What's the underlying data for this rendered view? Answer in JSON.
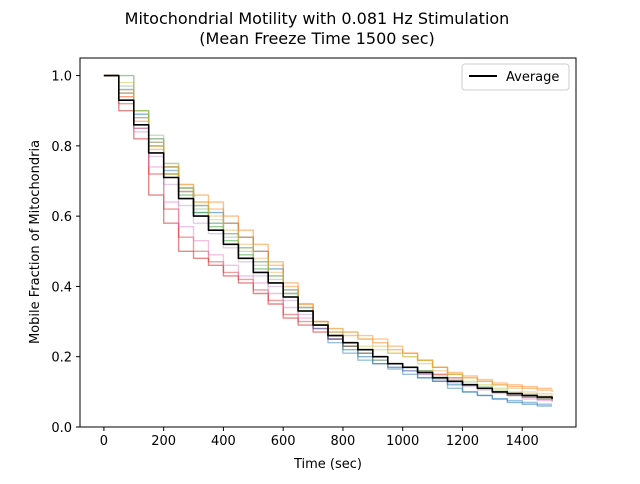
{
  "chart_data": {
    "type": "line",
    "title": "Mitochondrial Motility with 0.081 Hz Stimulation",
    "subtitle": "(Mean Freeze Time 1500 sec)",
    "xlabel": "Time (sec)",
    "ylabel": "Mobile Fraction of Mitochondria",
    "xlim": [
      -80,
      1580
    ],
    "ylim": [
      0.0,
      1.05
    ],
    "xticks": [
      0,
      200,
      400,
      600,
      800,
      1000,
      1200,
      1400
    ],
    "yticks": [
      0.0,
      0.2,
      0.4,
      0.6,
      0.8,
      1.0
    ],
    "xtick_labels": [
      "0",
      "200",
      "400",
      "600",
      "800",
      "1000",
      "1200",
      "1400"
    ],
    "ytick_labels": [
      "0.0",
      "0.2",
      "0.4",
      "0.6",
      "0.8",
      "1.0"
    ],
    "grid": false,
    "legend": {
      "position": "top-right",
      "entries": [
        "Average"
      ]
    },
    "step": true,
    "series": [
      {
        "name": "Average",
        "color": "#000000",
        "opacity": 1.0,
        "width": 1.6,
        "x": [
          0,
          50,
          100,
          150,
          200,
          250,
          300,
          350,
          400,
          450,
          500,
          550,
          600,
          650,
          700,
          750,
          800,
          850,
          900,
          950,
          1000,
          1050,
          1100,
          1150,
          1200,
          1250,
          1300,
          1350,
          1400,
          1450,
          1500
        ],
        "y": [
          1.0,
          0.93,
          0.86,
          0.78,
          0.71,
          0.65,
          0.6,
          0.56,
          0.52,
          0.48,
          0.44,
          0.41,
          0.37,
          0.33,
          0.29,
          0.26,
          0.24,
          0.22,
          0.2,
          0.18,
          0.17,
          0.155,
          0.14,
          0.13,
          0.12,
          0.11,
          0.1,
          0.095,
          0.09,
          0.085,
          0.08
        ]
      },
      {
        "color": "#d62728",
        "opacity": 0.55,
        "width": 1.4,
        "x": [
          0,
          50,
          100,
          150,
          200,
          250,
          300,
          350,
          400,
          450,
          500,
          550,
          600,
          650,
          700,
          750,
          800,
          850,
          900,
          950,
          1000,
          1050,
          1100,
          1150,
          1200,
          1250,
          1300,
          1350,
          1400,
          1450,
          1500
        ],
        "y": [
          1.0,
          0.9,
          0.82,
          0.66,
          0.58,
          0.5,
          0.48,
          0.46,
          0.43,
          0.41,
          0.38,
          0.35,
          0.31,
          0.29,
          0.27,
          0.25,
          0.23,
          0.22,
          0.2,
          0.18,
          0.17,
          0.16,
          0.15,
          0.14,
          0.12,
          0.11,
          0.1,
          0.095,
          0.09,
          0.085,
          0.08
        ]
      },
      {
        "color": "#d62728",
        "opacity": 0.45,
        "width": 1.4,
        "x": [
          0,
          50,
          100,
          150,
          200,
          250,
          300,
          350,
          400,
          450,
          500,
          550,
          600,
          650,
          700,
          750,
          800,
          850,
          900,
          950,
          1000,
          1050,
          1100,
          1150,
          1200,
          1250,
          1300,
          1350,
          1400,
          1450,
          1500
        ],
        "y": [
          1.0,
          0.92,
          0.85,
          0.72,
          0.62,
          0.54,
          0.5,
          0.47,
          0.44,
          0.42,
          0.39,
          0.36,
          0.32,
          0.3,
          0.28,
          0.25,
          0.23,
          0.21,
          0.2,
          0.18,
          0.17,
          0.155,
          0.14,
          0.13,
          0.12,
          0.11,
          0.1,
          0.09,
          0.085,
          0.08,
          0.075
        ]
      },
      {
        "color": "#e377c2",
        "opacity": 0.45,
        "width": 1.4,
        "x": [
          0,
          50,
          100,
          150,
          200,
          250,
          300,
          350,
          400,
          450,
          500,
          550,
          600,
          650,
          700,
          750,
          800,
          850,
          900,
          950,
          1000,
          1050,
          1100,
          1150,
          1200,
          1250,
          1300,
          1350,
          1400,
          1450,
          1500
        ],
        "y": [
          1.0,
          0.94,
          0.84,
          0.74,
          0.64,
          0.57,
          0.53,
          0.49,
          0.46,
          0.43,
          0.41,
          0.38,
          0.34,
          0.31,
          0.29,
          0.26,
          0.24,
          0.22,
          0.2,
          0.18,
          0.17,
          0.15,
          0.14,
          0.13,
          0.12,
          0.11,
          0.1,
          0.09,
          0.08,
          0.075,
          0.07
        ]
      },
      {
        "color": "#1f77b4",
        "opacity": 0.55,
        "width": 1.4,
        "x": [
          0,
          50,
          100,
          150,
          200,
          250,
          300,
          350,
          400,
          450,
          500,
          550,
          600,
          650,
          700,
          750,
          800,
          850,
          900,
          950,
          1000,
          1050,
          1100,
          1150,
          1200,
          1250,
          1300,
          1350,
          1400,
          1450,
          1500
        ],
        "y": [
          1.0,
          0.96,
          0.89,
          0.82,
          0.74,
          0.68,
          0.63,
          0.61,
          0.58,
          0.54,
          0.5,
          0.45,
          0.39,
          0.34,
          0.29,
          0.25,
          0.22,
          0.2,
          0.18,
          0.17,
          0.16,
          0.14,
          0.13,
          0.12,
          0.1,
          0.09,
          0.08,
          0.07,
          0.065,
          0.06,
          0.06
        ]
      },
      {
        "color": "#1f77b4",
        "opacity": 0.45,
        "width": 1.4,
        "x": [
          0,
          50,
          100,
          150,
          200,
          250,
          300,
          350,
          400,
          450,
          500,
          550,
          600,
          650,
          700,
          750,
          800,
          850,
          900,
          950,
          1000,
          1050,
          1100,
          1150,
          1200,
          1250,
          1300,
          1350,
          1400,
          1450,
          1500
        ],
        "y": [
          1.0,
          0.95,
          0.88,
          0.81,
          0.73,
          0.67,
          0.61,
          0.58,
          0.55,
          0.51,
          0.47,
          0.43,
          0.38,
          0.33,
          0.28,
          0.24,
          0.21,
          0.19,
          0.18,
          0.165,
          0.15,
          0.14,
          0.13,
          0.11,
          0.1,
          0.09,
          0.08,
          0.075,
          0.07,
          0.065,
          0.065
        ]
      },
      {
        "color": "#2ca02c",
        "opacity": 0.5,
        "width": 1.4,
        "x": [
          0,
          50,
          100,
          150,
          200,
          250,
          300,
          350,
          400,
          450,
          500,
          550,
          600,
          650,
          700,
          750,
          800,
          850,
          900,
          950,
          1000,
          1050,
          1100,
          1150,
          1200,
          1250,
          1300,
          1350,
          1400,
          1450,
          1500
        ],
        "y": [
          1.0,
          1.0,
          0.9,
          0.8,
          0.72,
          0.66,
          0.61,
          0.57,
          0.53,
          0.49,
          0.45,
          0.41,
          0.37,
          0.33,
          0.29,
          0.26,
          0.23,
          0.21,
          0.19,
          0.18,
          0.17,
          0.16,
          0.14,
          0.13,
          0.12,
          0.11,
          0.1,
          0.09,
          0.085,
          0.08,
          0.075
        ]
      },
      {
        "color": "#8fbc8f",
        "opacity": 0.5,
        "width": 1.4,
        "x": [
          0,
          50,
          100,
          150,
          200,
          250,
          300,
          350,
          400,
          450,
          500,
          550,
          600,
          650,
          700,
          750,
          800,
          850,
          900,
          950,
          1000,
          1050,
          1100,
          1150,
          1200,
          1250,
          1300,
          1350,
          1400,
          1450,
          1500
        ],
        "y": [
          1.0,
          0.97,
          0.9,
          0.83,
          0.75,
          0.68,
          0.62,
          0.58,
          0.54,
          0.5,
          0.46,
          0.42,
          0.38,
          0.34,
          0.3,
          0.27,
          0.24,
          0.22,
          0.2,
          0.18,
          0.17,
          0.16,
          0.145,
          0.135,
          0.125,
          0.115,
          0.105,
          0.095,
          0.09,
          0.085,
          0.08
        ]
      },
      {
        "color": "#ff7f0e",
        "opacity": 0.5,
        "width": 1.4,
        "x": [
          0,
          50,
          100,
          150,
          200,
          250,
          300,
          350,
          400,
          450,
          500,
          550,
          600,
          650,
          700,
          750,
          800,
          850,
          900,
          950,
          1000,
          1050,
          1100,
          1150,
          1200,
          1250,
          1300,
          1350,
          1400,
          1450,
          1500
        ],
        "y": [
          1.0,
          0.95,
          0.87,
          0.8,
          0.74,
          0.69,
          0.66,
          0.64,
          0.6,
          0.56,
          0.52,
          0.47,
          0.41,
          0.35,
          0.3,
          0.27,
          0.26,
          0.25,
          0.24,
          0.22,
          0.21,
          0.19,
          0.17,
          0.15,
          0.14,
          0.13,
          0.12,
          0.115,
          0.11,
          0.105,
          0.1
        ]
      },
      {
        "color": "#ff7f0e",
        "opacity": 0.45,
        "width": 1.4,
        "x": [
          0,
          50,
          100,
          150,
          200,
          250,
          300,
          350,
          400,
          450,
          500,
          550,
          600,
          650,
          700,
          750,
          800,
          850,
          900,
          950,
          1000,
          1050,
          1100,
          1150,
          1200,
          1250,
          1300,
          1350,
          1400,
          1450,
          1500
        ],
        "y": [
          1.0,
          0.94,
          0.86,
          0.79,
          0.72,
          0.67,
          0.64,
          0.62,
          0.58,
          0.54,
          0.5,
          0.46,
          0.4,
          0.35,
          0.3,
          0.28,
          0.27,
          0.26,
          0.25,
          0.23,
          0.21,
          0.19,
          0.17,
          0.155,
          0.145,
          0.135,
          0.125,
          0.12,
          0.115,
          0.11,
          0.11
        ]
      },
      {
        "color": "#e0b050",
        "opacity": 0.45,
        "width": 1.4,
        "x": [
          0,
          50,
          100,
          150,
          200,
          250,
          300,
          350,
          400,
          450,
          500,
          550,
          600,
          650,
          700,
          750,
          800,
          850,
          900,
          950,
          1000,
          1050,
          1100,
          1150,
          1200,
          1250,
          1300,
          1350,
          1400,
          1450,
          1500
        ],
        "y": [
          1.0,
          0.96,
          0.88,
          0.81,
          0.75,
          0.69,
          0.64,
          0.6,
          0.56,
          0.52,
          0.48,
          0.44,
          0.39,
          0.34,
          0.3,
          0.28,
          0.27,
          0.25,
          0.23,
          0.21,
          0.2,
          0.18,
          0.16,
          0.15,
          0.14,
          0.13,
          0.12,
          0.11,
          0.1,
          0.095,
          0.09
        ]
      },
      {
        "color": "#bcbd22",
        "opacity": 0.4,
        "width": 1.4,
        "x": [
          0,
          50,
          100,
          150,
          200,
          250,
          300,
          350,
          400,
          450,
          500,
          550,
          600,
          650,
          700,
          750,
          800,
          850,
          900,
          950,
          1000,
          1050,
          1100,
          1150,
          1200,
          1250,
          1300,
          1350,
          1400,
          1450,
          1500
        ],
        "y": [
          1.0,
          0.98,
          0.9,
          0.82,
          0.74,
          0.68,
          0.63,
          0.59,
          0.55,
          0.51,
          0.47,
          0.43,
          0.38,
          0.33,
          0.29,
          0.26,
          0.24,
          0.23,
          0.22,
          0.21,
          0.2,
          0.19,
          0.17,
          0.15,
          0.13,
          0.12,
          0.11,
          0.1,
          0.095,
          0.09,
          0.085
        ]
      },
      {
        "color": "#9467bd",
        "opacity": 0.3,
        "width": 1.4,
        "x": [
          0,
          50,
          100,
          150,
          200,
          250,
          300,
          350,
          400,
          450,
          500,
          550,
          600,
          650,
          700,
          750,
          800,
          850,
          900,
          950,
          1000,
          1050,
          1100,
          1150,
          1200,
          1250,
          1300,
          1350,
          1400,
          1450,
          1500
        ],
        "y": [
          1.0,
          0.93,
          0.85,
          0.77,
          0.69,
          0.63,
          0.58,
          0.55,
          0.51,
          0.47,
          0.43,
          0.4,
          0.36,
          0.32,
          0.28,
          0.25,
          0.23,
          0.21,
          0.19,
          0.17,
          0.16,
          0.15,
          0.135,
          0.125,
          0.115,
          0.105,
          0.095,
          0.09,
          0.085,
          0.08,
          0.075
        ]
      }
    ]
  }
}
